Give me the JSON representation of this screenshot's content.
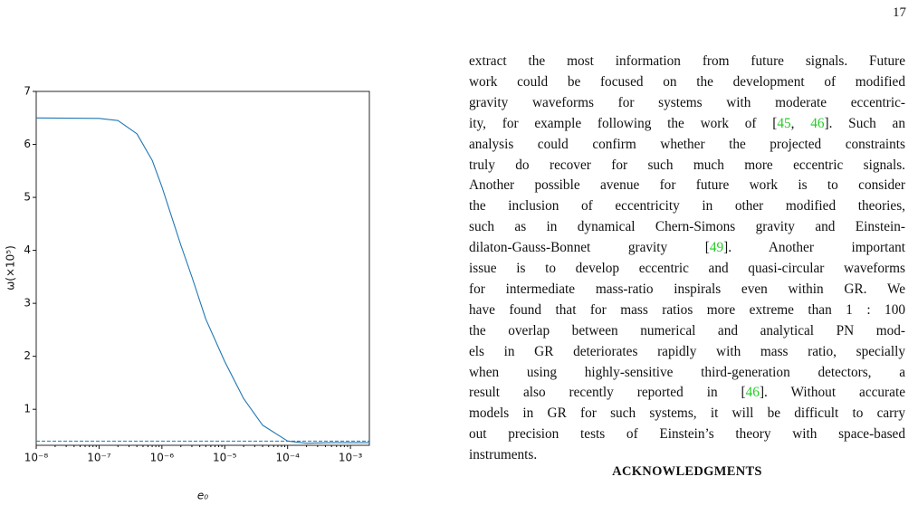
{
  "page_number": "17",
  "chart_data": {
    "type": "line",
    "xscale": "log",
    "x_label": "e₀",
    "y_label": "ω(×10⁵)",
    "x": [
      1e-08,
      1e-07,
      2e-07,
      4e-07,
      7e-07,
      1e-06,
      2e-06,
      3e-06,
      5e-06,
      1e-05,
      2e-05,
      4e-05,
      0.0001,
      0.0002,
      0.0005,
      0.002
    ],
    "series": [
      {
        "color": "#1f77b4",
        "values": [
          6.5,
          6.49,
          6.45,
          6.2,
          5.7,
          5.2,
          4.1,
          3.5,
          2.7,
          1.9,
          1.2,
          0.7,
          0.4,
          0.36,
          0.37,
          0.37
        ]
      }
    ],
    "reference_line": 0.4,
    "xlim": [
      1e-08,
      0.002
    ],
    "ylim": [
      0.32,
      7
    ],
    "xticks": [
      {
        "value": 1e-08,
        "label": "10⁻⁸"
      },
      {
        "value": 1e-07,
        "label": "10⁻⁷"
      },
      {
        "value": 1e-06,
        "label": "10⁻⁶"
      },
      {
        "value": 1e-05,
        "label": "10⁻⁵"
      },
      {
        "value": 0.0001,
        "label": "10⁻⁴"
      },
      {
        "value": 0.001,
        "label": "10⁻³"
      }
    ],
    "yticks": [
      1,
      2,
      3,
      4,
      5,
      6,
      7
    ]
  },
  "paragraph": [
    [
      "extract the most information from future signals. Future"
    ],
    [
      "work could be focused on the development of modified"
    ],
    [
      "gravity waveforms for systems with moderate eccentric-"
    ],
    [
      "ity, for example following the work of [",
      "45",
      ", ",
      "46",
      "]. Such an"
    ],
    [
      "analysis could confirm whether the projected constraints"
    ],
    [
      "truly do recover for such much more eccentric signals."
    ],
    [
      "Another possible avenue for future work is to consider"
    ],
    [
      "the inclusion of eccentricity in other modified theories,"
    ],
    [
      "such as in dynamical Chern-Simons gravity and Einstein-"
    ],
    [
      "dilaton-Gauss-Bonnet gravity [",
      "49",
      "]. Another important"
    ],
    [
      "issue is to develop eccentric and quasi-circular waveforms"
    ],
    [
      "for intermediate mass-ratio inspirals even within GR. We"
    ],
    [
      "have found that for mass ratios more extreme than 1 : 100"
    ],
    [
      "the overlap between numerical and analytical PN mod-"
    ],
    [
      "els in GR deteriorates rapidly with mass ratio, specially"
    ],
    [
      "when using highly-sensitive third-generation detectors, a"
    ],
    [
      "result also recently reported in [",
      "46",
      "]. Without accurate"
    ],
    [
      "models in GR for such systems, it will be difficult to carry"
    ],
    [
      "out precision tests of Einstein’s theory with space-based"
    ],
    [
      "instruments."
    ]
  ],
  "heading": "ACKNOWLEDGMENTS"
}
